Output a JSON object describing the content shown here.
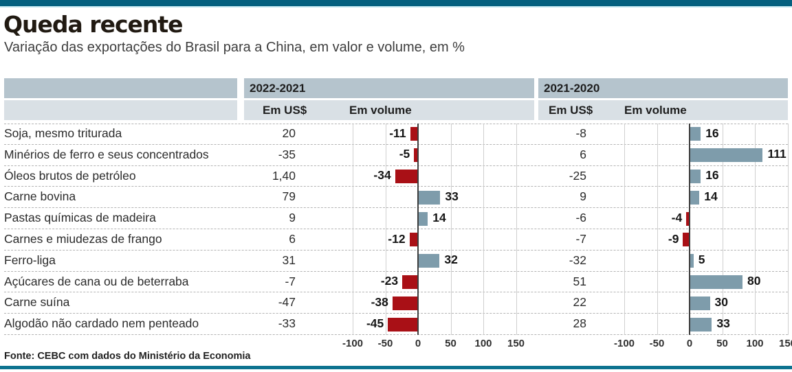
{
  "header": {
    "title": "Queda recente",
    "subtitle": "Variação das exportações do Brasil para a China, em valor e volume, em %"
  },
  "table_headers": {
    "group1": "2022-2021",
    "group2": "2021-2020",
    "usd": "Em US$",
    "volume": "Em volume"
  },
  "footer": {
    "source": "Fonte: CEBC com dados do Ministério da Economia"
  },
  "colors": {
    "accent_teal_top": "#05607f",
    "accent_teal_bottom": "#0d7390",
    "band_dark": "#b5c4cd",
    "band_light": "#d9e0e5",
    "bar_positive": "#7e9cab",
    "bar_negative": "#a91016"
  },
  "chart_data": {
    "type": "bar",
    "orientation": "horizontal",
    "title": "Queda recente",
    "subtitle": "Variação das exportações do Brasil para a China, em valor e volume, em %",
    "source": "Fonte: CEBC com dados do Ministério da Economia",
    "categories": [
      "Soja, mesmo triturada",
      "Minérios de ferro e seus concentrados",
      "Óleos brutos de petróleo",
      "Carne bovina",
      "Pastas químicas de madeira",
      "Carnes e miudezas de frango",
      "Ferro-liga",
      "Açúcares de cana ou de beterraba",
      "Carne suína",
      "Algodão não cardado nem penteado"
    ],
    "groups": [
      {
        "label": "2022-2021",
        "usd_text": [
          "20",
          "-35",
          "1,40",
          "79",
          "9",
          "6",
          "31",
          "-7",
          "-47",
          "-33"
        ],
        "volume": [
          -11,
          -5,
          -34,
          33,
          14,
          -12,
          32,
          -23,
          -38,
          -45
        ]
      },
      {
        "label": "2021-2020",
        "usd_text": [
          "-8",
          "6",
          "-25",
          "9",
          "-6",
          "-7",
          "-32",
          "51",
          "22",
          "28"
        ],
        "volume": [
          16,
          111,
          16,
          14,
          -4,
          -9,
          5,
          80,
          30,
          33
        ]
      }
    ],
    "axis_ticks": [
      -100,
      -50,
      0,
      50,
      100,
      150
    ],
    "xlim": [
      -125,
      160
    ],
    "grid": true,
    "legend": "none",
    "positive_color": "#7e9cab",
    "negative_color": "#a91016"
  }
}
